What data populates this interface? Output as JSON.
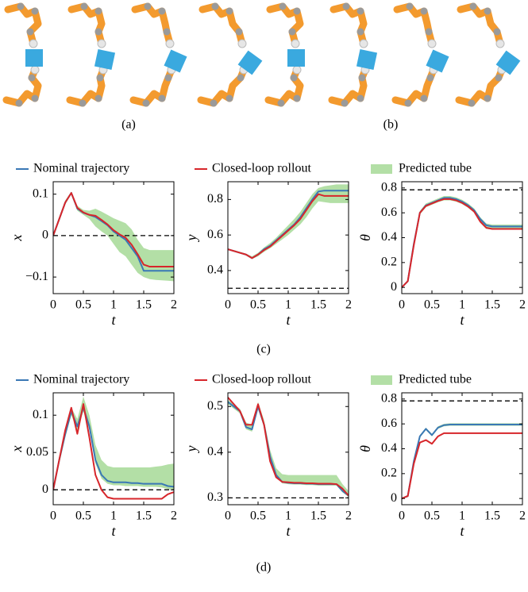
{
  "figure": {
    "captions": [
      "(a)",
      "(b)",
      "(c)",
      "(d)"
    ]
  },
  "chart_data": [
    {
      "type": "line",
      "x_label": "t",
      "y_label": "x",
      "x": [
        0,
        0.1,
        0.2,
        0.3,
        0.4,
        0.5,
        0.6,
        0.7,
        0.8,
        0.9,
        1,
        1.1,
        1.2,
        1.3,
        1.4,
        1.5,
        1.6,
        1.7,
        1.8,
        1.9,
        2
      ],
      "xlim": [
        0,
        2
      ],
      "xticks": [
        0,
        0.5,
        1,
        1.5,
        2
      ],
      "ylim": [
        -0.14,
        0.13
      ],
      "yticks": [
        {
          "value": -0.1,
          "label": "−0.1"
        },
        0,
        0.1
      ],
      "reference": 0,
      "series": [
        {
          "name": "Nominal trajectory",
          "color": "#3a78b5",
          "values": [
            0,
            0.04,
            0.08,
            0.103,
            0.065,
            0.055,
            0.05,
            0.045,
            0.035,
            0.025,
            0.01,
            0,
            -0.01,
            -0.03,
            -0.05,
            -0.085,
            -0.085,
            -0.085,
            -0.085,
            -0.085,
            -0.085
          ]
        },
        {
          "name": "Closed-loop rollout",
          "color": "#d7262b",
          "values": [
            0,
            0.04,
            0.08,
            0.103,
            0.067,
            0.056,
            0.05,
            0.048,
            0.038,
            0.027,
            0.013,
            0.003,
            -0.005,
            -0.022,
            -0.045,
            -0.07,
            -0.075,
            -0.075,
            -0.075,
            -0.075,
            -0.075
          ]
        },
        {
          "name": "Predicted tube",
          "color": "#b3dfa6",
          "upper": [
            0,
            0.045,
            0.085,
            0.106,
            0.072,
            0.062,
            0.06,
            0.065,
            0.058,
            0.05,
            0.042,
            0.036,
            0.03,
            0.015,
            -0.01,
            -0.03,
            -0.035,
            -0.035,
            -0.035,
            -0.035,
            -0.035
          ],
          "lower": [
            0,
            0.035,
            0.075,
            0.1,
            0.06,
            0.05,
            0.04,
            0.022,
            0.01,
            0,
            -0.02,
            -0.04,
            -0.05,
            -0.07,
            -0.09,
            -0.1,
            -0.105,
            -0.107,
            -0.108,
            -0.109,
            -0.11
          ]
        }
      ]
    },
    {
      "type": "line",
      "x_label": "t",
      "y_label": "y",
      "x": [
        0,
        0.1,
        0.2,
        0.3,
        0.4,
        0.5,
        0.6,
        0.7,
        0.8,
        0.9,
        1,
        1.1,
        1.2,
        1.3,
        1.4,
        1.5,
        1.6,
        1.7,
        1.8,
        1.9,
        2
      ],
      "xlim": [
        0,
        2
      ],
      "xticks": [
        0,
        0.5,
        1,
        1.5,
        2
      ],
      "ylim": [
        0.27,
        0.9
      ],
      "yticks": [
        0.4,
        0.6,
        0.8
      ],
      "reference": 0.3,
      "series": [
        {
          "name": "Nominal trajectory",
          "color": "#3a78b5",
          "values": [
            0.52,
            0.51,
            0.5,
            0.49,
            0.47,
            0.49,
            0.52,
            0.54,
            0.57,
            0.6,
            0.63,
            0.66,
            0.7,
            0.75,
            0.8,
            0.845,
            0.85,
            0.85,
            0.85,
            0.85,
            0.85
          ]
        },
        {
          "name": "Closed-loop rollout",
          "color": "#d7262b",
          "values": [
            0.52,
            0.51,
            0.5,
            0.49,
            0.47,
            0.49,
            0.515,
            0.535,
            0.565,
            0.595,
            0.625,
            0.655,
            0.69,
            0.74,
            0.79,
            0.83,
            0.82,
            0.82,
            0.82,
            0.82,
            0.82
          ]
        },
        {
          "name": "Predicted tube",
          "color": "#b3dfa6",
          "upper": [
            0.52,
            0.515,
            0.505,
            0.495,
            0.48,
            0.5,
            0.53,
            0.555,
            0.585,
            0.62,
            0.655,
            0.69,
            0.73,
            0.78,
            0.83,
            0.865,
            0.875,
            0.88,
            0.885,
            0.885,
            0.885
          ],
          "lower": [
            0.52,
            0.505,
            0.495,
            0.485,
            0.465,
            0.48,
            0.505,
            0.525,
            0.55,
            0.575,
            0.6,
            0.63,
            0.66,
            0.7,
            0.75,
            0.79,
            0.785,
            0.78,
            0.78,
            0.78,
            0.78
          ]
        }
      ]
    },
    {
      "type": "line",
      "x_label": "t",
      "y_label": "θ",
      "x": [
        0,
        0.1,
        0.2,
        0.3,
        0.4,
        0.5,
        0.6,
        0.7,
        0.8,
        0.9,
        1,
        1.1,
        1.2,
        1.3,
        1.4,
        1.5,
        1.6,
        1.7,
        1.8,
        1.9,
        2
      ],
      "xlim": [
        0,
        2
      ],
      "xticks": [
        0,
        0.5,
        1,
        1.5,
        2
      ],
      "ylim": [
        -0.05,
        0.85
      ],
      "yticks": [
        0,
        0.2,
        0.4,
        0.6,
        0.8
      ],
      "reference": 0.785,
      "series": [
        {
          "name": "Nominal trajectory",
          "color": "#3a78b5",
          "values": [
            0,
            0.05,
            0.35,
            0.6,
            0.66,
            0.68,
            0.7,
            0.72,
            0.72,
            0.71,
            0.69,
            0.66,
            0.62,
            0.55,
            0.5,
            0.49,
            0.49,
            0.49,
            0.49,
            0.49,
            0.49
          ]
        },
        {
          "name": "Closed-loop rollout",
          "color": "#d7262b",
          "values": [
            0,
            0.05,
            0.34,
            0.6,
            0.655,
            0.675,
            0.695,
            0.71,
            0.71,
            0.7,
            0.68,
            0.65,
            0.61,
            0.53,
            0.48,
            0.47,
            0.47,
            0.47,
            0.47,
            0.47,
            0.47
          ]
        },
        {
          "name": "Predicted tube",
          "color": "#b3dfa6",
          "upper": [
            0.005,
            0.06,
            0.36,
            0.615,
            0.675,
            0.695,
            0.715,
            0.735,
            0.735,
            0.725,
            0.705,
            0.675,
            0.635,
            0.565,
            0.515,
            0.505,
            0.505,
            0.505,
            0.505,
            0.505,
            0.505
          ],
          "lower": [
            0,
            0.04,
            0.33,
            0.585,
            0.645,
            0.665,
            0.685,
            0.7,
            0.7,
            0.69,
            0.67,
            0.64,
            0.6,
            0.52,
            0.47,
            0.465,
            0.465,
            0.465,
            0.465,
            0.465,
            0.465
          ]
        }
      ]
    },
    {
      "type": "line",
      "x_label": "t",
      "y_label": "x",
      "x": [
        0,
        0.1,
        0.2,
        0.3,
        0.4,
        0.5,
        0.6,
        0.7,
        0.8,
        0.9,
        1,
        1.1,
        1.2,
        1.3,
        1.4,
        1.5,
        1.6,
        1.7,
        1.8,
        1.9,
        2
      ],
      "xlim": [
        0,
        2
      ],
      "xticks": [
        0,
        0.5,
        1,
        1.5,
        2
      ],
      "ylim": [
        -0.02,
        0.13
      ],
      "yticks": [
        0,
        0.05,
        0.1
      ],
      "reference": 0,
      "series": [
        {
          "name": "Nominal trajectory",
          "color": "#3a78b5",
          "values": [
            0,
            0.04,
            0.075,
            0.105,
            0.085,
            0.11,
            0.085,
            0.04,
            0.02,
            0.012,
            0.01,
            0.01,
            0.01,
            0.009,
            0.009,
            0.008,
            0.008,
            0.008,
            0.008,
            0.005,
            0.004
          ]
        },
        {
          "name": "Closed-loop rollout",
          "color": "#d7262b",
          "values": [
            0,
            0.04,
            0.08,
            0.11,
            0.075,
            0.115,
            0.07,
            0.02,
            0,
            -0.01,
            -0.012,
            -0.012,
            -0.012,
            -0.012,
            -0.012,
            -0.012,
            -0.012,
            -0.012,
            -0.012,
            -0.006,
            -0.003
          ]
        },
        {
          "name": "Predicted tube",
          "color": "#b3dfa6",
          "upper": [
            0,
            0.045,
            0.082,
            0.11,
            0.095,
            0.125,
            0.1,
            0.06,
            0.04,
            0.032,
            0.03,
            0.03,
            0.03,
            0.03,
            0.03,
            0.03,
            0.03,
            0.031,
            0.032,
            0.034,
            0.035
          ],
          "lower": [
            0,
            0.035,
            0.07,
            0.1,
            0.08,
            0.105,
            0.08,
            0.035,
            0.015,
            0.008,
            0.006,
            0.006,
            0.005,
            0.005,
            0.005,
            0.004,
            0.004,
            0.004,
            0.003,
            0.001,
            0
          ]
        }
      ]
    },
    {
      "type": "line",
      "x_label": "t",
      "y_label": "y",
      "x": [
        0,
        0.1,
        0.2,
        0.3,
        0.4,
        0.5,
        0.6,
        0.7,
        0.8,
        0.9,
        1,
        1.1,
        1.2,
        1.3,
        1.4,
        1.5,
        1.6,
        1.7,
        1.8,
        1.9,
        2
      ],
      "xlim": [
        0,
        2
      ],
      "xticks": [
        0,
        0.5,
        1,
        1.5,
        2
      ],
      "ylim": [
        0.285,
        0.53
      ],
      "yticks": [
        0.3,
        0.4,
        0.5
      ],
      "reference": 0.3,
      "series": [
        {
          "name": "Nominal trajectory",
          "color": "#3a78b5",
          "values": [
            0.51,
            0.5,
            0.49,
            0.455,
            0.45,
            0.5,
            0.46,
            0.39,
            0.35,
            0.335,
            0.333,
            0.332,
            0.332,
            0.331,
            0.331,
            0.33,
            0.33,
            0.33,
            0.33,
            0.315,
            0.305
          ]
        },
        {
          "name": "Closed-loop rollout",
          "color": "#d7262b",
          "values": [
            0.52,
            0.505,
            0.49,
            0.46,
            0.46,
            0.505,
            0.46,
            0.38,
            0.345,
            0.335,
            0.334,
            0.333,
            0.333,
            0.332,
            0.332,
            0.331,
            0.331,
            0.331,
            0.33,
            0.32,
            0.305
          ]
        },
        {
          "name": "Predicted tube",
          "color": "#b3dfa6",
          "upper": [
            0.515,
            0.505,
            0.495,
            0.465,
            0.46,
            0.51,
            0.47,
            0.405,
            0.365,
            0.352,
            0.35,
            0.35,
            0.35,
            0.35,
            0.35,
            0.35,
            0.35,
            0.35,
            0.35,
            0.33,
            0.315
          ],
          "lower": [
            0.505,
            0.495,
            0.485,
            0.45,
            0.445,
            0.495,
            0.455,
            0.385,
            0.345,
            0.332,
            0.33,
            0.329,
            0.329,
            0.328,
            0.328,
            0.327,
            0.327,
            0.327,
            0.327,
            0.312,
            0.302
          ]
        }
      ]
    },
    {
      "type": "line",
      "x_label": "t",
      "y_label": "θ",
      "x": [
        0,
        0.1,
        0.2,
        0.3,
        0.4,
        0.5,
        0.6,
        0.7,
        0.8,
        0.9,
        1,
        1.1,
        1.2,
        1.3,
        1.4,
        1.5,
        1.6,
        1.7,
        1.8,
        1.9,
        2
      ],
      "xlim": [
        0,
        2
      ],
      "xticks": [
        0,
        0.5,
        1,
        1.5,
        2
      ],
      "ylim": [
        -0.05,
        0.85
      ],
      "yticks": [
        0,
        0.2,
        0.4,
        0.6,
        0.8
      ],
      "reference": 0.785,
      "series": [
        {
          "name": "Nominal trajectory",
          "color": "#3a78b5",
          "values": [
            0,
            0.02,
            0.3,
            0.5,
            0.56,
            0.51,
            0.57,
            0.59,
            0.595,
            0.595,
            0.595,
            0.595,
            0.595,
            0.595,
            0.595,
            0.595,
            0.595,
            0.595,
            0.595,
            0.595,
            0.595
          ]
        },
        {
          "name": "Closed-loop rollout",
          "color": "#d7262b",
          "values": [
            0,
            0.02,
            0.28,
            0.45,
            0.47,
            0.44,
            0.5,
            0.525,
            0.525,
            0.525,
            0.525,
            0.525,
            0.525,
            0.525,
            0.525,
            0.525,
            0.525,
            0.525,
            0.525,
            0.525,
            0.525
          ]
        },
        {
          "name": "Predicted tube",
          "color": "#b3dfa6",
          "upper": [
            0,
            0.03,
            0.31,
            0.51,
            0.57,
            0.52,
            0.58,
            0.6,
            0.605,
            0.605,
            0.605,
            0.605,
            0.605,
            0.605,
            0.605,
            0.605,
            0.605,
            0.605,
            0.605,
            0.605,
            0.605
          ],
          "lower": [
            0,
            0.01,
            0.29,
            0.49,
            0.55,
            0.5,
            0.56,
            0.58,
            0.585,
            0.585,
            0.585,
            0.585,
            0.585,
            0.585,
            0.585,
            0.585,
            0.585,
            0.585,
            0.585,
            0.585,
            0.585
          ]
        }
      ]
    }
  ]
}
